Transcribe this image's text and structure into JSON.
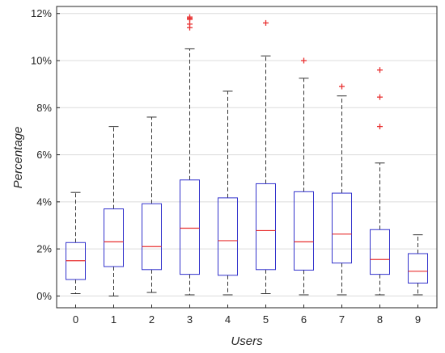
{
  "chart_data": {
    "type": "box",
    "xlabel": "Users",
    "ylabel": "Percentage",
    "categories": [
      "0",
      "1",
      "2",
      "3",
      "4",
      "5",
      "6",
      "7",
      "8",
      "9"
    ],
    "y_unit": "%",
    "ylim": [
      -0.5,
      12.3
    ],
    "yticks": [
      0,
      2,
      4,
      6,
      8,
      10,
      12
    ],
    "ytick_labels": [
      "0%",
      "2%",
      "4%",
      "6%",
      "8%",
      "10%",
      "12%"
    ],
    "grid": "horizontal",
    "colors": {
      "box": "#3333cc",
      "median": "#e83030",
      "whisker": "#333333",
      "outlier": "#e83030",
      "grid": "#dcdcdc"
    },
    "boxes": [
      {
        "name": "0",
        "whisker_low": 0.1,
        "q1": 0.7,
        "median": 1.5,
        "q3": 2.27,
        "whisker_high": 4.4,
        "outliers": []
      },
      {
        "name": "1",
        "whisker_low": 0.0,
        "q1": 1.25,
        "median": 2.3,
        "q3": 3.7,
        "whisker_high": 7.2,
        "outliers": []
      },
      {
        "name": "2",
        "whisker_low": 0.15,
        "q1": 1.12,
        "median": 2.1,
        "q3": 3.92,
        "whisker_high": 7.6,
        "outliers": []
      },
      {
        "name": "3",
        "whisker_low": 0.05,
        "q1": 0.92,
        "median": 2.88,
        "q3": 4.93,
        "whisker_high": 10.5,
        "outliers": [
          11.4,
          11.55,
          11.75,
          11.8,
          11.85
        ]
      },
      {
        "name": "4",
        "whisker_low": 0.05,
        "q1": 0.88,
        "median": 2.35,
        "q3": 4.17,
        "whisker_high": 8.7,
        "outliers": []
      },
      {
        "name": "5",
        "whisker_low": 0.1,
        "q1": 1.12,
        "median": 2.78,
        "q3": 4.77,
        "whisker_high": 10.2,
        "outliers": [
          11.6
        ]
      },
      {
        "name": "6",
        "whisker_low": 0.05,
        "q1": 1.1,
        "median": 2.3,
        "q3": 4.43,
        "whisker_high": 9.25,
        "outliers": [
          10.0
        ]
      },
      {
        "name": "7",
        "whisker_low": 0.05,
        "q1": 1.4,
        "median": 2.63,
        "q3": 4.37,
        "whisker_high": 8.5,
        "outliers": [
          8.9
        ]
      },
      {
        "name": "8",
        "whisker_low": 0.05,
        "q1": 0.92,
        "median": 1.55,
        "q3": 2.82,
        "whisker_high": 5.65,
        "outliers": [
          7.2,
          8.45,
          9.6
        ]
      },
      {
        "name": "9",
        "whisker_low": 0.05,
        "q1": 0.55,
        "median": 1.05,
        "q3": 1.8,
        "whisker_high": 2.6,
        "outliers": []
      }
    ]
  }
}
